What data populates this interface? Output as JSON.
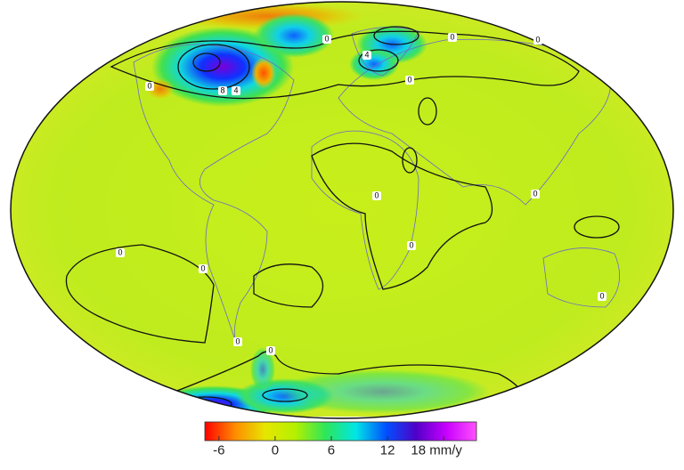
{
  "map": {
    "contour_labels": [
      0,
      0,
      0,
      0,
      4,
      8,
      4,
      0,
      0,
      0,
      0,
      0,
      0,
      0,
      0,
      0
    ],
    "colorbar": {
      "lim": [
        -7.5,
        21.5
      ],
      "ticks": [
        -6,
        0,
        6,
        12,
        {
          "value": 18,
          "label": "18 mm/y"
        }
      ],
      "colors": [
        "#ff0000",
        "#ff8c00",
        "#e6e600",
        "#b4f000",
        "#2de65a",
        "#00e6e6",
        "#0050ff",
        "#5000c8",
        "#c800ff",
        "#ff50ff"
      ]
    }
  }
}
